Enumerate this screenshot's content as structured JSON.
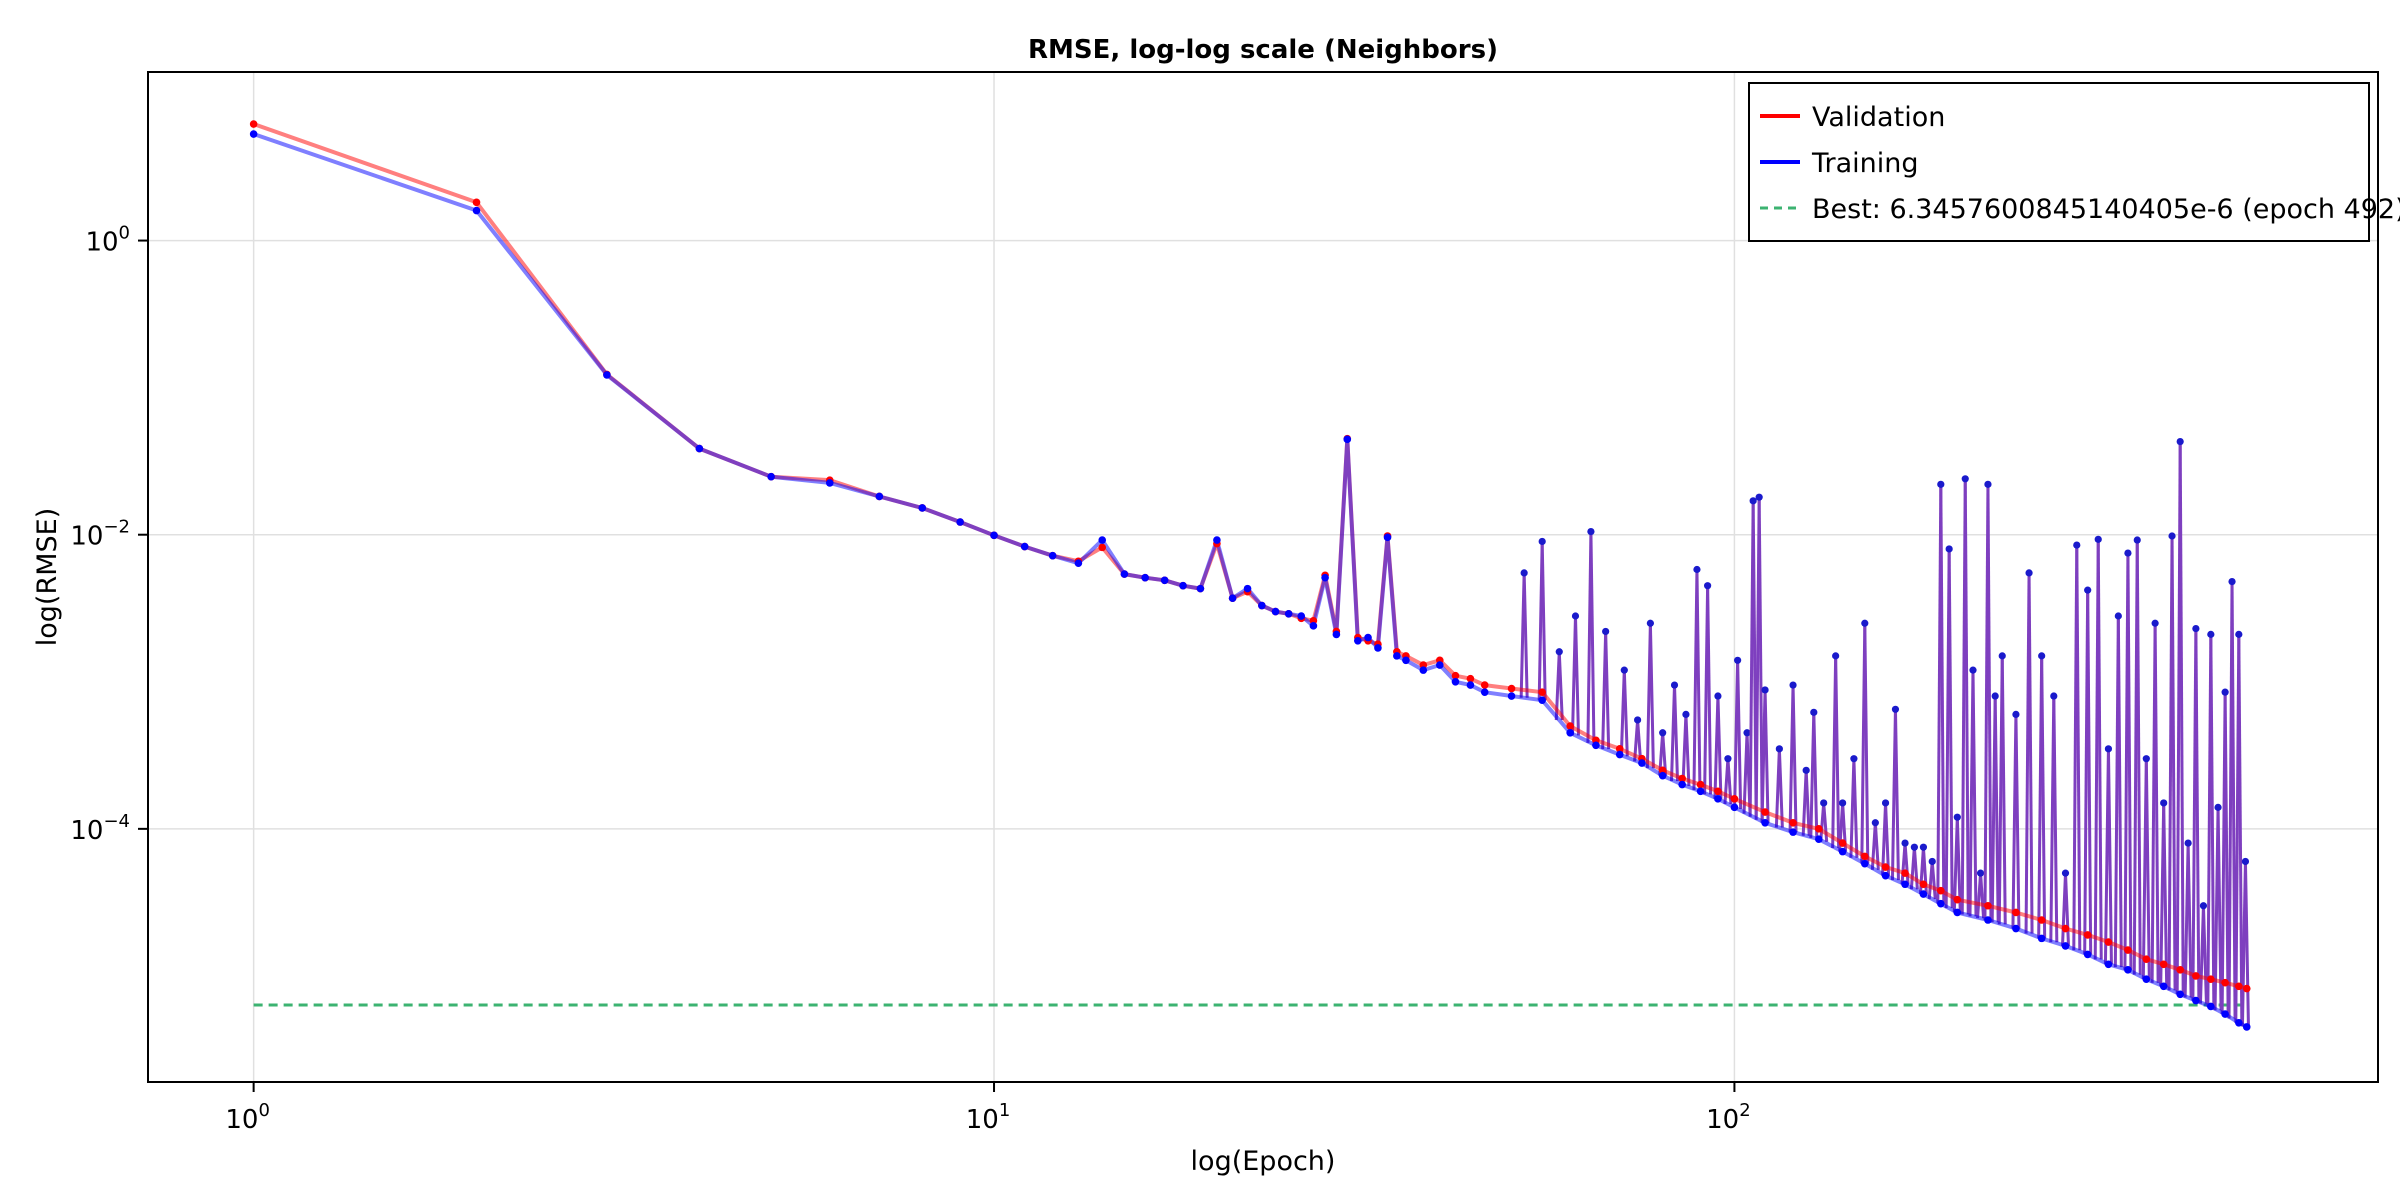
{
  "chart_data": {
    "type": "line",
    "title": "RMSE, log-log scale (Neighbors)",
    "xlabel": "log(Epoch)",
    "ylabel": "log(RMSE)",
    "xscale": "log10",
    "yscale": "log10",
    "xlim": [
      0.72,
      740
    ],
    "ylim": [
      1.9e-06,
      14
    ],
    "x_ticks": [
      {
        "value": 1,
        "base": "10",
        "exp": "0"
      },
      {
        "value": 10,
        "base": "10",
        "exp": "1"
      },
      {
        "value": 100,
        "base": "10",
        "exp": "2"
      }
    ],
    "y_ticks": [
      {
        "value": 1,
        "base": "10",
        "exp": "0"
      },
      {
        "value": 0.01,
        "base": "10",
        "exp": "−2"
      },
      {
        "value": 0.0001,
        "base": "10",
        "exp": "−4"
      }
    ],
    "grid": true,
    "legend_position": "top-right",
    "series": [
      {
        "name": "Validation",
        "color": "#ff0000",
        "x": [
          1,
          2,
          3,
          4,
          5,
          6,
          7,
          8,
          9,
          10,
          11,
          12,
          13,
          14,
          15,
          16,
          17,
          18,
          19,
          20,
          21,
          22,
          23,
          24,
          25,
          26,
          27,
          28,
          29,
          30,
          31,
          32,
          33,
          34,
          35,
          36,
          38,
          40,
          42,
          44,
          46,
          50,
          55,
          60,
          65,
          70,
          75,
          80,
          85,
          90,
          95,
          100,
          110,
          120,
          130,
          140,
          150,
          160,
          170,
          180,
          190,
          200,
          220,
          240,
          260,
          280,
          300,
          320,
          340,
          360,
          380,
          400,
          420,
          440,
          460,
          480,
          492
        ],
        "values": [
          6.2,
          1.82,
          0.123,
          0.0385,
          0.0248,
          0.0235,
          0.0182,
          0.0152,
          0.0122,
          0.0099,
          0.0083,
          0.0072,
          0.0066,
          0.0082,
          0.0054,
          0.0051,
          0.0049,
          0.0045,
          0.0043,
          0.0087,
          0.0037,
          0.0041,
          0.0033,
          0.003,
          0.0029,
          0.0027,
          0.0026,
          0.0053,
          0.0022,
          0.045,
          0.002,
          0.0019,
          0.0018,
          0.0098,
          0.0016,
          0.0015,
          0.0013,
          0.0014,
          0.0011,
          0.00105,
          0.00095,
          0.0009,
          0.00085,
          0.0005,
          0.0004,
          0.00035,
          0.0003,
          0.00025,
          0.00022,
          0.0002,
          0.00018,
          0.00016,
          0.00013,
          0.00011,
          0.0001,
          8e-05,
          6.5e-05,
          5.5e-05,
          5e-05,
          4.2e-05,
          3.8e-05,
          3.3e-05,
          3e-05,
          2.7e-05,
          2.4e-05,
          2.1e-05,
          1.9e-05,
          1.7e-05,
          1.5e-05,
          1.3e-05,
          1.2e-05,
          1.1e-05,
          1e-05,
          9.5e-06,
          9e-06,
          8.5e-06,
          8.2e-06
        ]
      },
      {
        "name": "Training",
        "color": "#0000ff",
        "x": [
          1,
          2,
          3,
          4,
          5,
          6,
          7,
          8,
          9,
          10,
          11,
          12,
          13,
          14,
          15,
          16,
          17,
          18,
          19,
          20,
          21,
          22,
          23,
          24,
          25,
          26,
          27,
          28,
          29,
          30,
          31,
          32,
          33,
          34,
          35,
          36,
          38,
          40,
          42,
          44,
          46,
          50,
          55,
          60,
          65,
          70,
          75,
          80,
          85,
          90,
          95,
          100,
          110,
          120,
          130,
          140,
          150,
          160,
          170,
          180,
          190,
          200,
          220,
          240,
          260,
          280,
          300,
          320,
          340,
          360,
          380,
          400,
          420,
          440,
          460,
          480,
          492
        ],
        "values": [
          5.3,
          1.6,
          0.122,
          0.0385,
          0.0248,
          0.0225,
          0.0182,
          0.0152,
          0.0122,
          0.0099,
          0.0083,
          0.0072,
          0.0064,
          0.0092,
          0.0054,
          0.0051,
          0.0049,
          0.0045,
          0.0043,
          0.0092,
          0.0037,
          0.0043,
          0.0033,
          0.003,
          0.0029,
          0.0028,
          0.0024,
          0.0051,
          0.0021,
          0.0445,
          0.0019,
          0.002,
          0.0017,
          0.0096,
          0.0015,
          0.0014,
          0.0012,
          0.0013,
          0.001,
          0.00095,
          0.00085,
          0.0008,
          0.00075,
          0.00045,
          0.00037,
          0.00032,
          0.00028,
          0.00023,
          0.0002,
          0.00018,
          0.00016,
          0.00014,
          0.00011,
          9.5e-05,
          8.5e-05,
          7e-05,
          5.8e-05,
          4.8e-05,
          4.2e-05,
          3.6e-05,
          3.1e-05,
          2.7e-05,
          2.4e-05,
          2.1e-05,
          1.8e-05,
          1.6e-05,
          1.4e-05,
          1.2e-05,
          1.1e-05,
          9.5e-06,
          8.5e-06,
          7.5e-06,
          6.8e-06,
          6.2e-06,
          5.5e-06,
          4.8e-06,
          4.5e-06
        ]
      }
    ],
    "spikes": {
      "x": [
        52,
        55,
        58,
        61,
        64,
        67,
        71,
        74,
        77,
        80,
        83,
        86,
        89,
        92,
        95,
        98,
        101,
        104,
        106,
        108,
        110,
        115,
        120,
        125,
        128,
        132,
        137,
        140,
        145,
        150,
        155,
        160,
        165,
        170,
        175,
        180,
        185,
        190,
        195,
        200,
        205,
        210,
        215,
        220,
        225,
        230,
        240,
        250,
        260,
        270,
        280,
        290,
        300,
        310,
        320,
        330,
        340,
        350,
        360,
        370,
        380,
        390,
        400,
        410,
        420,
        430,
        440,
        450,
        460,
        470,
        480,
        490
      ],
      "values": [
        0.0055,
        0.009,
        0.0016,
        0.0028,
        0.0105,
        0.0022,
        0.0012,
        0.00055,
        0.0025,
        0.00045,
        0.00095,
        0.0006,
        0.0058,
        0.0045,
        0.0008,
        0.0003,
        0.0014,
        0.00045,
        0.017,
        0.018,
        0.00088,
        0.00035,
        0.00095,
        0.00025,
        0.00062,
        0.00015,
        0.0015,
        0.00015,
        0.0003,
        0.0025,
        0.00011,
        0.00015,
        0.00065,
        8e-05,
        7.5e-05,
        7.5e-05,
        6e-05,
        0.022,
        0.008,
        0.00012,
        0.024,
        0.0012,
        5e-05,
        0.022,
        0.0008,
        0.0015,
        0.0006,
        0.0055,
        0.0015,
        0.0008,
        5e-05,
        0.0085,
        0.0042,
        0.0093,
        0.00035,
        0.0028,
        0.0075,
        0.0092,
        0.0003,
        0.0025,
        0.00015,
        0.0098,
        0.043,
        8e-05,
        0.0023,
        3e-05,
        0.0021,
        0.00014,
        0.00085,
        0.0048,
        0.0021,
        6e-05
      ]
    }
  },
  "legend": {
    "items": [
      {
        "label": "Validation",
        "color": "#ff0000",
        "style": "solid"
      },
      {
        "label": "Training",
        "color": "#0000ff",
        "style": "solid"
      },
      {
        "label": "Best: 6.3457600845140405e-6 (epoch 492)",
        "color": "#3cb371",
        "style": "dashed"
      }
    ]
  },
  "best": {
    "value": 6.3457600845140405e-06,
    "epoch": 492,
    "color": "#3cb371"
  }
}
